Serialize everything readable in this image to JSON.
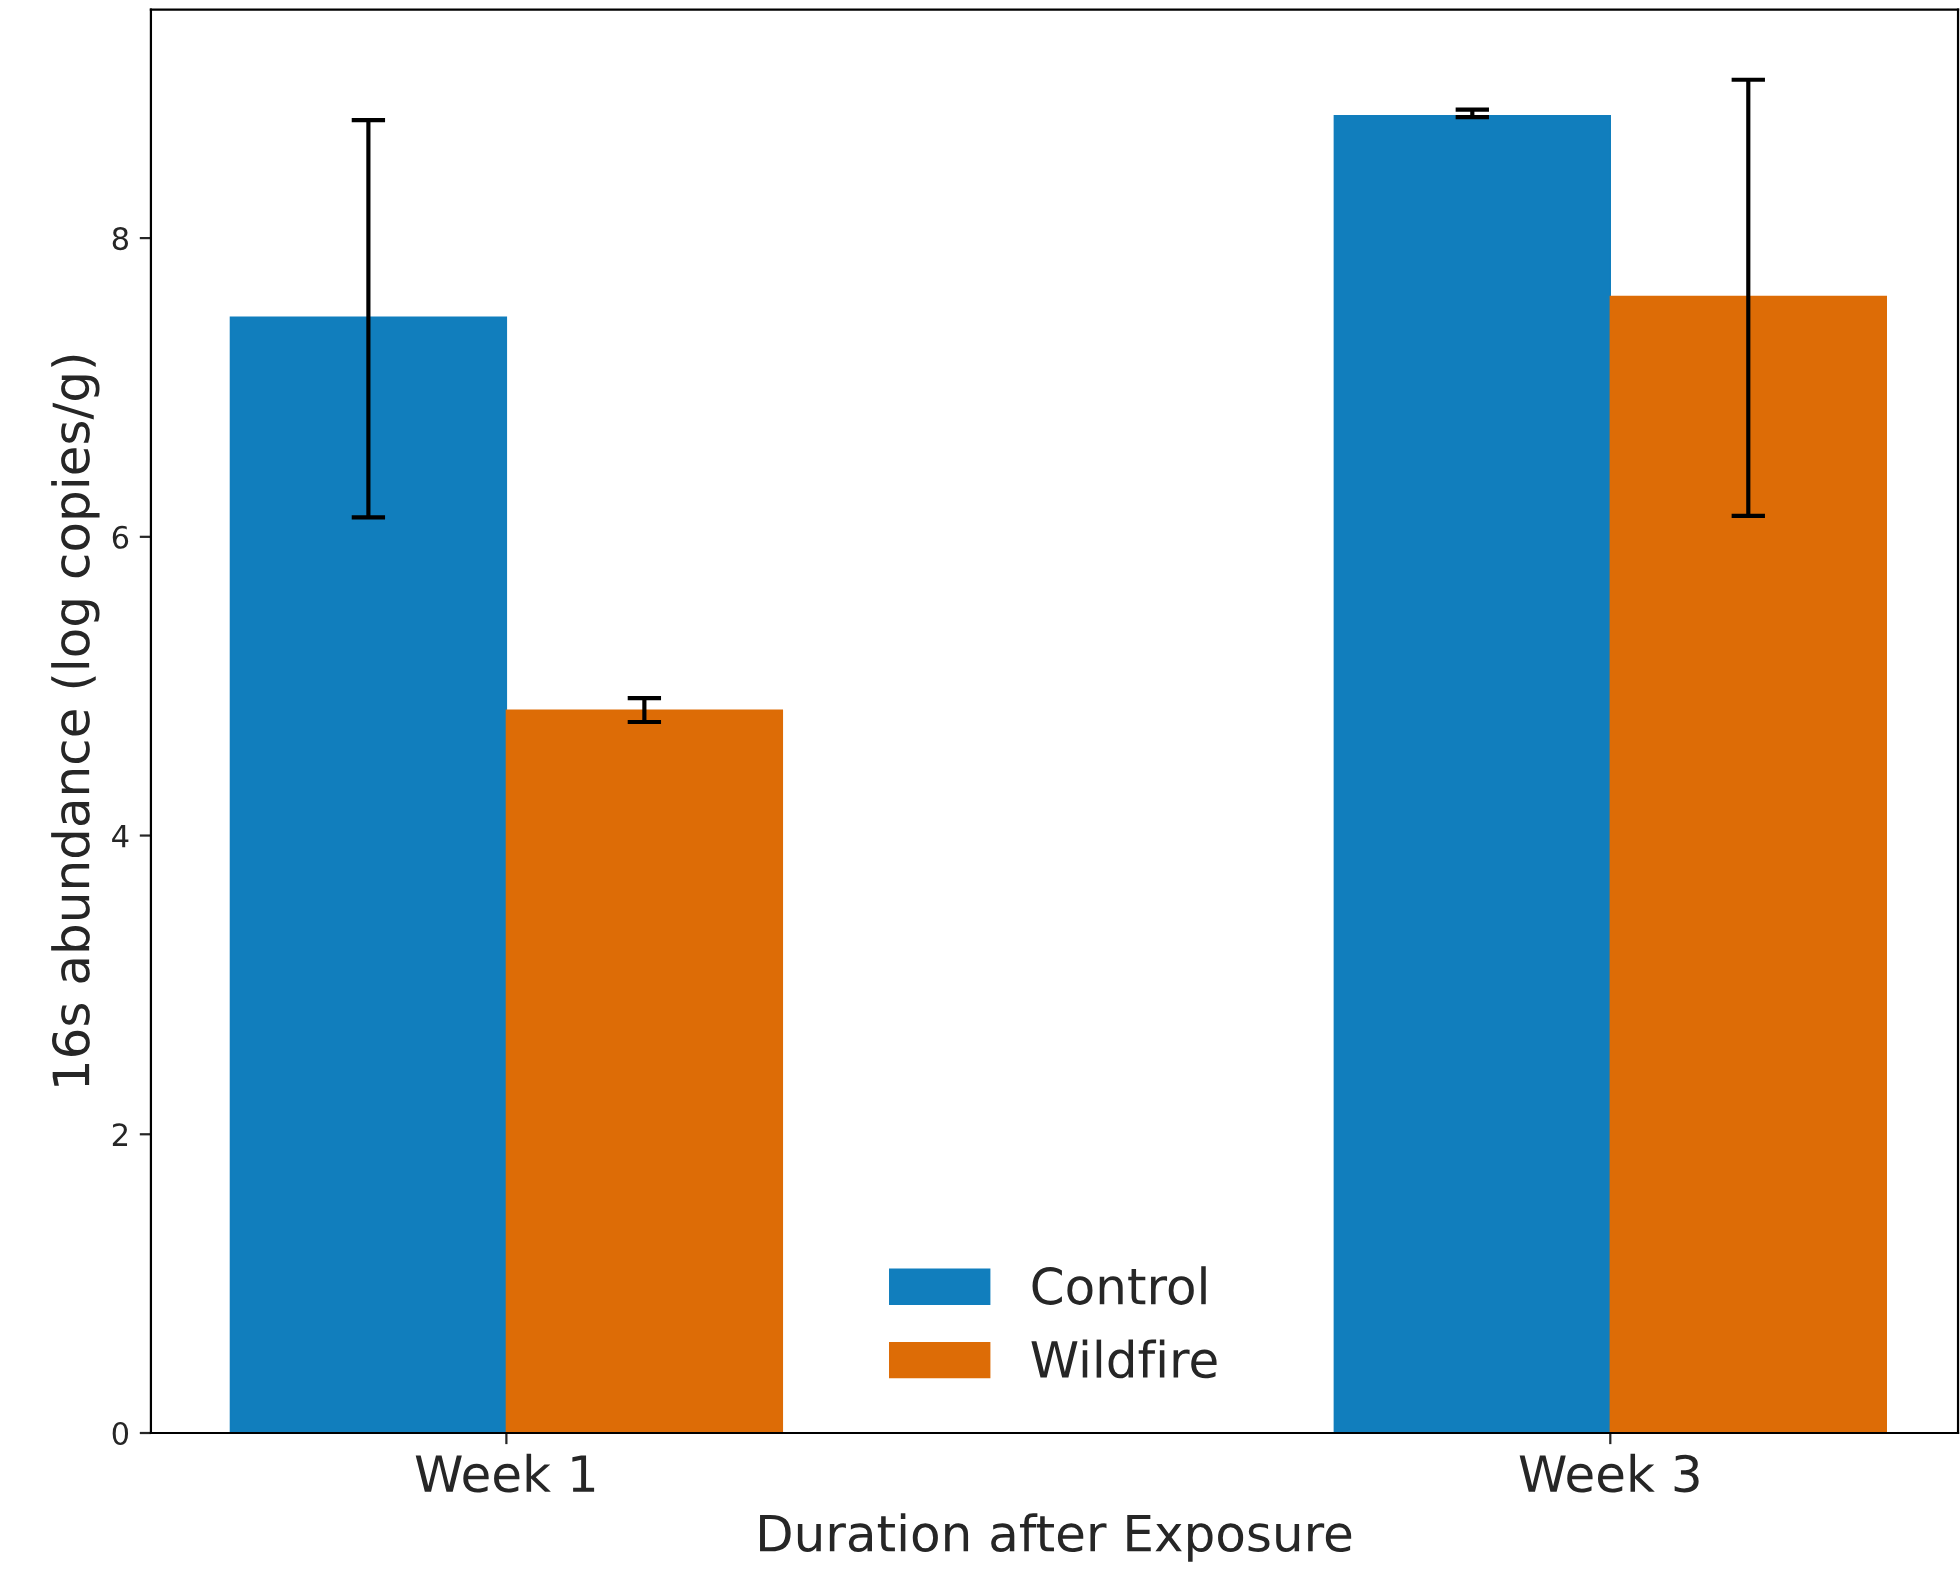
{
  "chart_data": {
    "type": "bar",
    "xlabel": "Duration after Exposure",
    "ylabel": "16s abundance (log copies/g)",
    "categories": [
      "Week 1",
      "Week 3"
    ],
    "series": [
      {
        "name": "Control",
        "color": "#117ebd",
        "values": [
          7.47,
          8.82
        ],
        "errors": [
          [
            6.13,
            8.79
          ],
          [
            8.81,
            8.86
          ]
        ]
      },
      {
        "name": "Wildfire",
        "color": "#dd6c06",
        "values": [
          4.84,
          7.61
        ],
        "errors": [
          [
            4.76,
            4.92
          ],
          [
            6.14,
            9.06
          ]
        ]
      }
    ],
    "ylim": [
      0,
      9.53
    ],
    "yticks": [
      0,
      2,
      4,
      6,
      8
    ],
    "grid": false,
    "legend": "bottom"
  }
}
